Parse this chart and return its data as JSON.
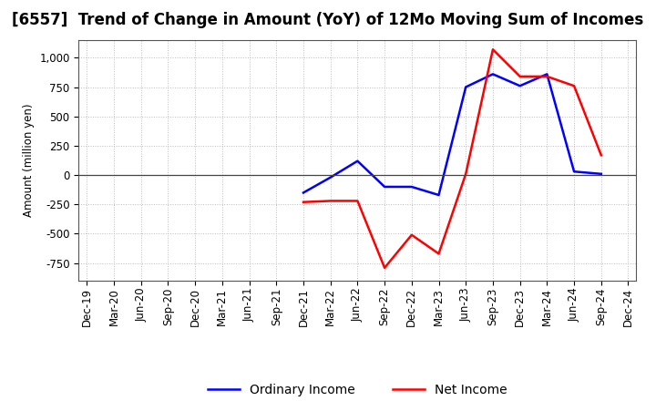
{
  "title": "[6557]  Trend of Change in Amount (YoY) of 12Mo Moving Sum of Incomes",
  "ylabel": "Amount (million yen)",
  "x_labels": [
    "Dec-19",
    "Mar-20",
    "Jun-20",
    "Sep-20",
    "Dec-20",
    "Mar-21",
    "Jun-21",
    "Sep-21",
    "Dec-21",
    "Mar-22",
    "Jun-22",
    "Sep-22",
    "Dec-22",
    "Mar-23",
    "Jun-23",
    "Sep-23",
    "Dec-23",
    "Mar-24",
    "Jun-24",
    "Sep-24",
    "Dec-24"
  ],
  "ordinary_income": [
    null,
    null,
    null,
    null,
    null,
    null,
    null,
    null,
    -150,
    -20,
    120,
    -100,
    -100,
    -170,
    750,
    860,
    760,
    860,
    30,
    10,
    null
  ],
  "net_income": [
    null,
    null,
    null,
    null,
    null,
    null,
    null,
    null,
    -230,
    -220,
    -220,
    -790,
    -510,
    -670,
    10,
    1070,
    840,
    840,
    760,
    170,
    null
  ],
  "ordinary_color": "#0000ff",
  "net_color": "#ff0000",
  "ylim_min": -900,
  "ylim_max": 1150,
  "yticks": [
    -750,
    -500,
    -250,
    0,
    250,
    500,
    750,
    1000
  ],
  "background_color": "#ffffff",
  "grid_color": "#bbbbbb",
  "line_width": 1.8,
  "title_fontsize": 12,
  "legend_fontsize": 10,
  "axis_fontsize": 8.5
}
